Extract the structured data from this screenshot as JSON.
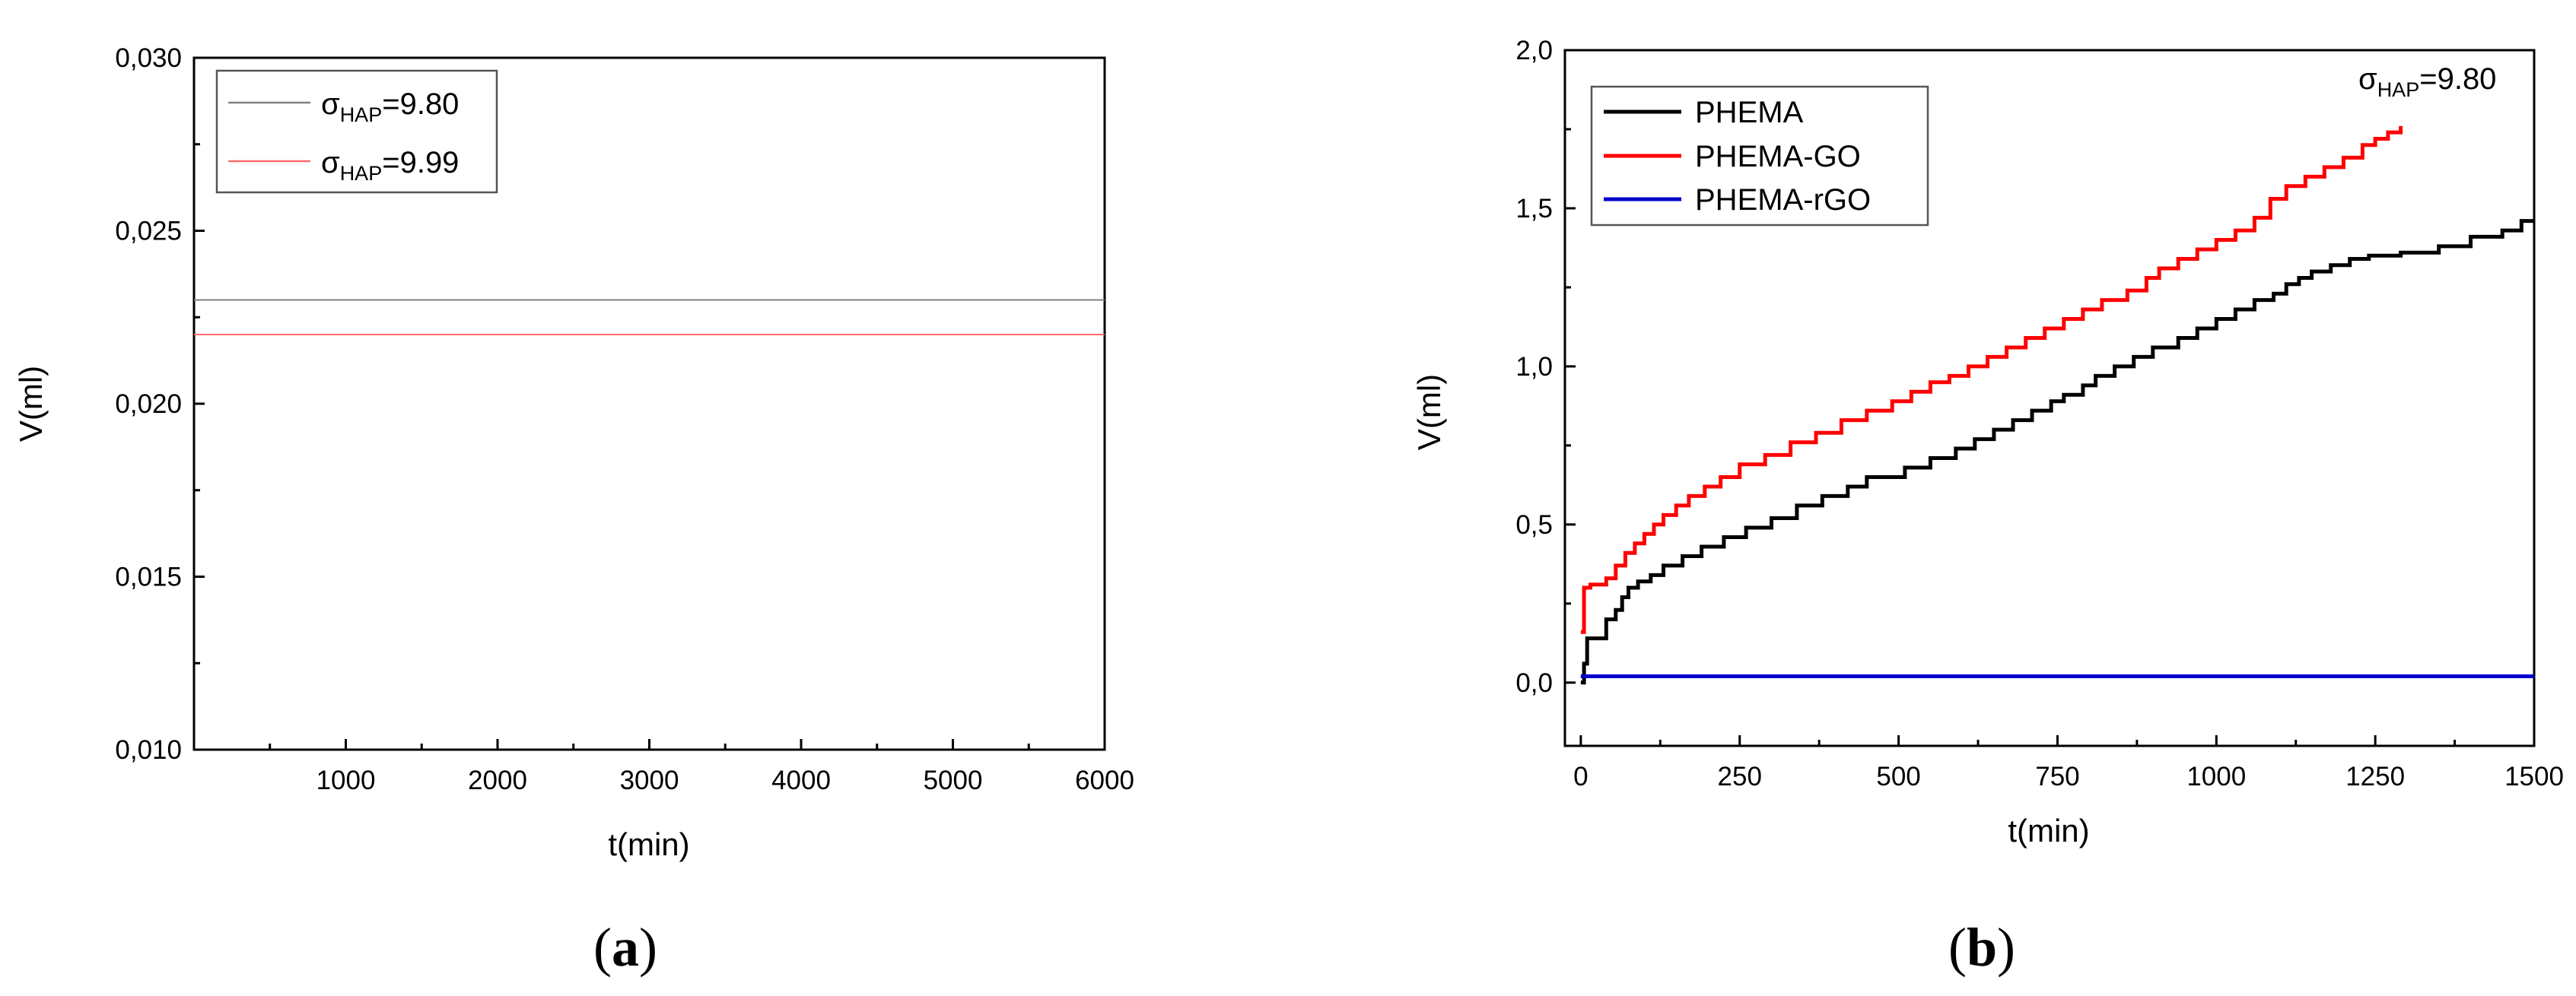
{
  "chart_data": [
    {
      "id": "a",
      "type": "line",
      "caption_open": "(",
      "caption_letter": "a",
      "caption_close": ")",
      "xlabel": "t(min)",
      "ylabel": "V(ml)",
      "xlim": [
        0,
        6000
      ],
      "ylim": [
        0.01,
        0.03
      ],
      "x_ticks": [
        "1000",
        "2000",
        "3000",
        "4000",
        "5000",
        "6000"
      ],
      "x_tick_values": [
        1000,
        2000,
        3000,
        4000,
        5000,
        6000
      ],
      "y_ticks": [
        "0,010",
        "0,015",
        "0,020",
        "0,025",
        "0,030"
      ],
      "y_tick_values": [
        0.01,
        0.015,
        0.02,
        0.025,
        0.03
      ],
      "grid": false,
      "legend_position": "top-left",
      "series": [
        {
          "sigma": "σ",
          "subscript": "HAP",
          "value": "=9.80",
          "color": "#808080",
          "x": [
            0,
            6000
          ],
          "y": [
            0.023,
            0.023
          ]
        },
        {
          "sigma": "σ",
          "subscript": "HAP",
          "value": "=9.99",
          "color": "#ff6b6b",
          "x": [
            0,
            6000
          ],
          "y": [
            0.022,
            0.022
          ]
        }
      ]
    },
    {
      "id": "b",
      "type": "line",
      "caption_open": "(",
      "caption_letter": "b",
      "caption_close": ")",
      "xlabel": "t(min)",
      "ylabel": "V(ml)",
      "xlim": [
        -25,
        1500
      ],
      "ylim": [
        -0.2,
        2.0
      ],
      "x_ticks": [
        "0",
        "250",
        "500",
        "750",
        "1000",
        "1250",
        "1500"
      ],
      "x_tick_values": [
        0,
        250,
        500,
        750,
        1000,
        1250,
        1500
      ],
      "y_ticks": [
        "0,0",
        "0,5",
        "1,0",
        "1,5",
        "2,0"
      ],
      "y_tick_values": [
        0.0,
        0.5,
        1.0,
        1.5,
        2.0
      ],
      "grid": false,
      "legend_position": "top-left",
      "annotation": {
        "sigma": "σ",
        "subscript": "HAP",
        "value": "=9.80"
      },
      "series": [
        {
          "name": "PHEMA",
          "color": "#000000",
          "step": true,
          "x": [
            0,
            5,
            10,
            20,
            40,
            55,
            65,
            75,
            90,
            110,
            130,
            160,
            190,
            225,
            260,
            300,
            340,
            380,
            420,
            450,
            510,
            550,
            590,
            620,
            650,
            680,
            710,
            740,
            760,
            790,
            810,
            840,
            870,
            900,
            940,
            970,
            1000,
            1030,
            1060,
            1090,
            1110,
            1130,
            1150,
            1180,
            1210,
            1240,
            1290,
            1350,
            1400,
            1450,
            1480,
            1500
          ],
          "y": [
            0.0,
            0.06,
            0.14,
            0.14,
            0.2,
            0.23,
            0.27,
            0.3,
            0.32,
            0.34,
            0.37,
            0.4,
            0.43,
            0.46,
            0.49,
            0.52,
            0.56,
            0.59,
            0.62,
            0.65,
            0.68,
            0.71,
            0.74,
            0.77,
            0.8,
            0.83,
            0.86,
            0.89,
            0.91,
            0.94,
            0.97,
            1.0,
            1.03,
            1.06,
            1.09,
            1.12,
            1.15,
            1.18,
            1.21,
            1.23,
            1.26,
            1.28,
            1.3,
            1.32,
            1.34,
            1.35,
            1.36,
            1.38,
            1.41,
            1.43,
            1.46,
            1.46
          ]
        },
        {
          "name": "PHEMA-GO",
          "color": "#ff0000",
          "step": true,
          "x": [
            0,
            5,
            15,
            40,
            55,
            70,
            85,
            100,
            115,
            130,
            150,
            170,
            195,
            220,
            250,
            290,
            330,
            370,
            410,
            450,
            490,
            520,
            550,
            580,
            610,
            640,
            670,
            700,
            730,
            760,
            790,
            820,
            860,
            890,
            910,
            940,
            970,
            1000,
            1030,
            1060,
            1085,
            1110,
            1140,
            1170,
            1200,
            1230,
            1250,
            1270,
            1290
          ],
          "y": [
            0.16,
            0.3,
            0.31,
            0.33,
            0.37,
            0.41,
            0.44,
            0.47,
            0.5,
            0.53,
            0.56,
            0.59,
            0.62,
            0.65,
            0.69,
            0.72,
            0.76,
            0.79,
            0.83,
            0.86,
            0.89,
            0.92,
            0.95,
            0.97,
            1.0,
            1.03,
            1.06,
            1.09,
            1.12,
            1.15,
            1.18,
            1.21,
            1.24,
            1.28,
            1.31,
            1.34,
            1.37,
            1.4,
            1.43,
            1.47,
            1.53,
            1.57,
            1.6,
            1.63,
            1.66,
            1.7,
            1.72,
            1.74,
            1.76
          ]
        },
        {
          "name": "PHEMA-rGO",
          "color": "#0000cc",
          "step": false,
          "x": [
            0,
            1500
          ],
          "y": [
            0.02,
            0.02
          ]
        }
      ]
    }
  ]
}
